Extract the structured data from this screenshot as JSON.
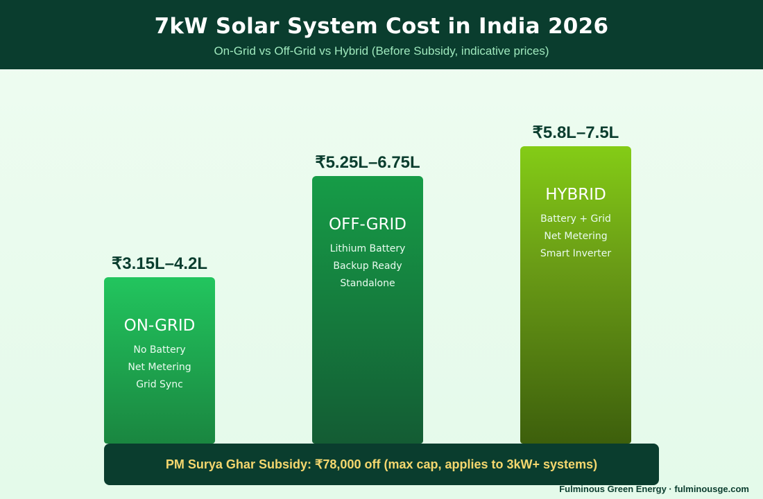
{
  "header": {
    "title": "7kW Solar System Cost in India 2026",
    "subtitle": "On-Grid vs Off-Grid vs Hybrid (Before Subsidy, indicative prices)"
  },
  "chart_data": {
    "type": "bar",
    "title": "7kW Solar System Cost in India 2026",
    "subtitle": "On-Grid vs Off-Grid vs Hybrid (Before Subsidy, indicative prices)",
    "categories": [
      "ON-GRID",
      "OFF-GRID",
      "HYBRID"
    ],
    "values": [
      4.2,
      6.75,
      7.5
    ],
    "ranges": [
      {
        "low": 3.15,
        "high": 4.2
      },
      {
        "low": 5.25,
        "high": 6.75
      },
      {
        "low": 5.8,
        "high": 7.5
      }
    ],
    "ylim": [
      0,
      9.45
    ],
    "grid": false,
    "bars": [
      {
        "name": "ON-GRID",
        "price_label": "₹3.15L–4.2L",
        "features": [
          "No Battery",
          "Net Metering",
          "Grid Sync"
        ],
        "color_top": "#22c55e",
        "color_bottom": "#1a8640"
      },
      {
        "name": "OFF-GRID",
        "price_label": "₹5.25L–6.75L",
        "features": [
          "Lithium Battery",
          "Backup Ready",
          "Standalone"
        ],
        "color_top": "#169c47",
        "color_bottom": "#145c34"
      },
      {
        "name": "HYBRID",
        "price_label": "₹5.8L–7.5L",
        "features": [
          "Battery + Grid",
          "Net Metering",
          "Smart Inverter"
        ],
        "color_top": "#84cc16",
        "color_bottom": "#3d5f0c"
      }
    ]
  },
  "subsidy": {
    "text": "PM Surya Ghar Subsidy: ₹78,000 off (max cap, applies to 3kW+ systems)"
  },
  "footer": {
    "credit": "Fulminous Green Energy · fulminousge.com"
  },
  "colors": {
    "header_bg": "#0a3d2e",
    "subtitle": "#9fe8bd",
    "price_text": "#0a3d2e",
    "subsidy_text": "#f5d76e"
  }
}
